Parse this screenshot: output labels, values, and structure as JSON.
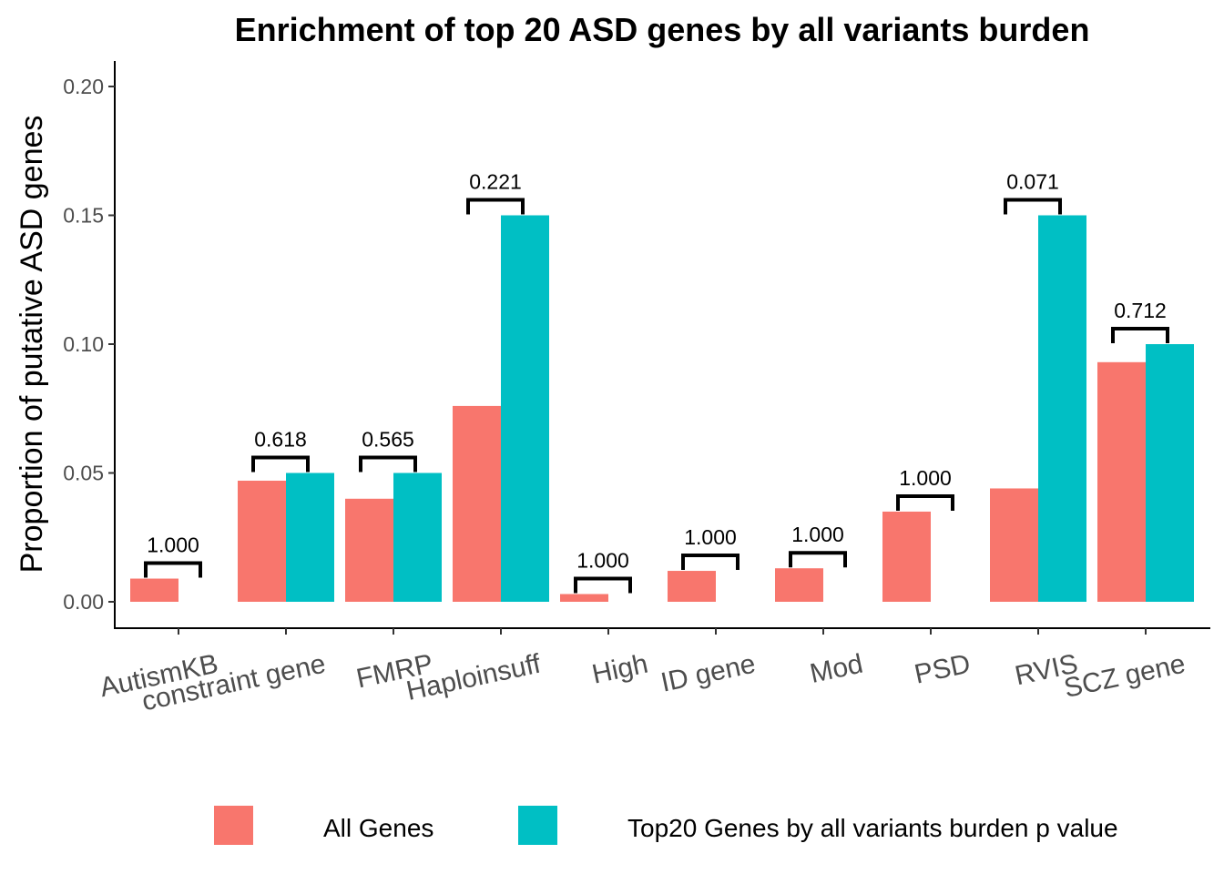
{
  "chart_data": {
    "type": "bar",
    "title": "Enrichment of top 20 ASD genes by all variants burden",
    "xlabel": "",
    "ylabel": "Proportion of putative ASD genes",
    "ylim": [
      0,
      0.2
    ],
    "yticks": [
      "0.00",
      "0.05",
      "0.10",
      "0.15",
      "0.20"
    ],
    "ytick_values": [
      0,
      0.05,
      0.1,
      0.15,
      0.2
    ],
    "categories": [
      "AutismKB",
      "constraint gene",
      "FMRP",
      "Haploinsuff",
      "High",
      "ID gene",
      "Mod",
      "PSD",
      "RVIS",
      "SCZ gene"
    ],
    "series": [
      {
        "name": "All Genes",
        "color": "#F8766D",
        "values": [
          0.009,
          0.047,
          0.04,
          0.076,
          0.003,
          0.012,
          0.013,
          0.035,
          0.044,
          0.093
        ]
      },
      {
        "name": "Top20 Genes by all variants burden p value",
        "color": "#00BFC4",
        "values": [
          0,
          0.05,
          0.05,
          0.15,
          0,
          0,
          0,
          0,
          0.15,
          0.1
        ]
      }
    ],
    "annotations": [
      "1.000",
      "0.618",
      "0.565",
      "0.221",
      "1.000",
      "1.000",
      "1.000",
      "1.000",
      "0.071",
      "0.712"
    ],
    "grid": false,
    "legend_position": "bottom"
  }
}
